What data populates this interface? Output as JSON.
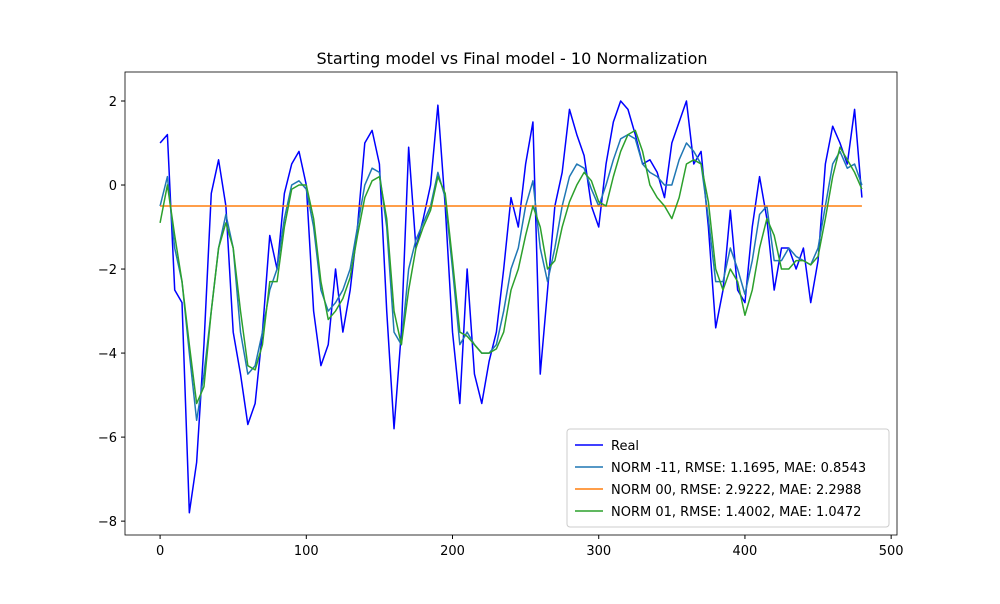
{
  "chart_data": {
    "type": "line",
    "title": "Starting model vs Final model - 10 Normalization",
    "x": [
      0,
      5,
      10,
      15,
      20,
      25,
      30,
      35,
      40,
      45,
      50,
      55,
      60,
      65,
      70,
      75,
      80,
      85,
      90,
      95,
      100,
      105,
      110,
      115,
      120,
      125,
      130,
      135,
      140,
      145,
      150,
      155,
      160,
      165,
      170,
      175,
      180,
      185,
      190,
      195,
      200,
      205,
      210,
      215,
      220,
      225,
      230,
      235,
      240,
      245,
      250,
      255,
      260,
      265,
      270,
      275,
      280,
      285,
      290,
      295,
      300,
      305,
      310,
      315,
      320,
      325,
      330,
      335,
      340,
      345,
      350,
      355,
      360,
      365,
      370,
      375,
      380,
      385,
      390,
      395,
      400,
      405,
      410,
      415,
      420,
      425,
      430,
      435,
      440,
      445,
      450,
      455,
      460,
      465,
      470,
      475,
      480
    ],
    "series": [
      {
        "name": "Real",
        "color": "#0000ff",
        "values": [
          1.0,
          1.2,
          -2.5,
          -2.8,
          -7.8,
          -6.6,
          -3.8,
          -0.2,
          0.6,
          -0.5,
          -3.5,
          -4.5,
          -5.7,
          -5.2,
          -3.5,
          -1.2,
          -2.0,
          -0.2,
          0.5,
          0.8,
          0.0,
          -3.0,
          -4.3,
          -3.8,
          -2.0,
          -3.5,
          -2.5,
          -1.0,
          1.0,
          1.3,
          0.5,
          -3.0,
          -5.8,
          -3.5,
          0.9,
          -1.5,
          -0.8,
          0.0,
          1.9,
          -0.5,
          -3.5,
          -5.2,
          -2.0,
          -4.5,
          -5.2,
          -4.2,
          -3.5,
          -2.0,
          -0.3,
          -1.0,
          0.5,
          1.5,
          -4.5,
          -2.5,
          -0.5,
          0.3,
          1.8,
          1.2,
          0.7,
          -0.5,
          -1.0,
          0.5,
          1.5,
          2.0,
          1.8,
          1.2,
          0.5,
          0.6,
          0.3,
          -0.3,
          1.0,
          1.5,
          2.0,
          0.5,
          0.8,
          -1.0,
          -3.4,
          -2.5,
          -0.6,
          -2.5,
          -2.8,
          -1.0,
          0.2,
          -0.8,
          -2.5,
          -1.5,
          -1.5,
          -2.0,
          -1.5,
          -2.8,
          -1.8,
          0.5,
          1.4,
          1.0,
          0.5,
          1.8,
          -0.3
        ]
      },
      {
        "name": "NORM -11, RMSE: 1.1695, MAE: 0.8543",
        "color": "#1f77b4",
        "values": [
          -0.5,
          0.2,
          -1.5,
          -2.3,
          -4.0,
          -5.6,
          -4.5,
          -3.0,
          -1.5,
          -0.7,
          -1.5,
          -3.5,
          -4.5,
          -4.3,
          -3.5,
          -2.5,
          -2.0,
          -0.8,
          0.0,
          0.1,
          -0.1,
          -1.0,
          -2.5,
          -3.0,
          -2.8,
          -2.5,
          -2.0,
          -1.0,
          0.0,
          0.4,
          0.3,
          -1.0,
          -3.5,
          -3.8,
          -2.0,
          -1.3,
          -0.9,
          -0.5,
          0.3,
          -0.3,
          -2.0,
          -3.8,
          -3.5,
          -3.8,
          -4.0,
          -4.0,
          -3.8,
          -3.0,
          -2.0,
          -1.5,
          -0.5,
          0.1,
          -1.5,
          -2.3,
          -1.5,
          -0.5,
          0.2,
          0.5,
          0.4,
          -0.1,
          -0.5,
          0.0,
          0.6,
          1.1,
          1.2,
          1.1,
          0.5,
          0.3,
          0.2,
          0.0,
          0.0,
          0.6,
          1.0,
          0.8,
          0.5,
          -0.8,
          -2.3,
          -2.3,
          -1.5,
          -2.0,
          -2.6,
          -1.8,
          -0.7,
          -0.5,
          -1.8,
          -1.8,
          -1.5,
          -1.7,
          -1.8,
          -1.9,
          -1.5,
          -0.5,
          0.5,
          0.8,
          0.4,
          0.5,
          0.0
        ]
      },
      {
        "name": "NORM 00, RMSE: 2.9222, MAE: 2.2988",
        "color": "#ff7f0e",
        "values": [
          -0.5,
          -0.5,
          -0.5,
          -0.5,
          -0.5,
          -0.5,
          -0.5,
          -0.5,
          -0.5,
          -0.5,
          -0.5,
          -0.5,
          -0.5,
          -0.5,
          -0.5,
          -0.5,
          -0.5,
          -0.5,
          -0.5,
          -0.5,
          -0.5,
          -0.5,
          -0.5,
          -0.5,
          -0.5,
          -0.5,
          -0.5,
          -0.5,
          -0.5,
          -0.5,
          -0.5,
          -0.5,
          -0.5,
          -0.5,
          -0.5,
          -0.5,
          -0.5,
          -0.5,
          -0.5,
          -0.5,
          -0.5,
          -0.5,
          -0.5,
          -0.5,
          -0.5,
          -0.5,
          -0.5,
          -0.5,
          -0.5,
          -0.5,
          -0.5,
          -0.5,
          -0.5,
          -0.5,
          -0.5,
          -0.5,
          -0.5,
          -0.5,
          -0.5,
          -0.5,
          -0.5,
          -0.5,
          -0.5,
          -0.5,
          -0.5,
          -0.5,
          -0.5,
          -0.5,
          -0.5,
          -0.5,
          -0.5,
          -0.5,
          -0.5,
          -0.5,
          -0.5,
          -0.5,
          -0.5,
          -0.5,
          -0.5,
          -0.5,
          -0.5,
          -0.5,
          -0.5,
          -0.5,
          -0.5,
          -0.5,
          -0.5,
          -0.5,
          -0.5,
          -0.5,
          -0.5,
          -0.5,
          -0.5,
          -0.5,
          -0.5,
          -0.5,
          -0.5
        ]
      },
      {
        "name": "NORM 01, RMSE: 1.4002, MAE: 1.0472",
        "color": "#2ca02c",
        "values": [
          -0.9,
          0.0,
          -1.2,
          -2.3,
          -3.8,
          -5.2,
          -4.8,
          -3.0,
          -1.5,
          -0.9,
          -1.5,
          -3.0,
          -4.3,
          -4.4,
          -3.8,
          -2.3,
          -2.3,
          -1.0,
          -0.1,
          0.0,
          0.0,
          -0.8,
          -2.3,
          -3.2,
          -3.0,
          -2.7,
          -2.2,
          -1.2,
          -0.3,
          0.1,
          0.2,
          -0.8,
          -3.0,
          -3.8,
          -2.5,
          -1.5,
          -1.0,
          -0.6,
          0.2,
          -0.2,
          -1.8,
          -3.5,
          -3.6,
          -3.8,
          -4.0,
          -4.0,
          -3.9,
          -3.5,
          -2.5,
          -2.0,
          -1.2,
          -0.5,
          -1.0,
          -2.0,
          -1.8,
          -1.0,
          -0.4,
          0.0,
          0.3,
          0.1,
          -0.4,
          -0.5,
          0.2,
          0.8,
          1.2,
          1.3,
          0.8,
          0.0,
          -0.3,
          -0.5,
          -0.8,
          -0.3,
          0.5,
          0.6,
          0.5,
          -0.4,
          -2.0,
          -2.5,
          -2.0,
          -2.3,
          -3.1,
          -2.5,
          -1.5,
          -0.8,
          -1.2,
          -2.0,
          -2.0,
          -1.8,
          -1.8,
          -1.9,
          -1.7,
          -0.8,
          0.2,
          0.9,
          0.6,
          0.3,
          -0.1
        ]
      }
    ],
    "xlim": [
      -24,
      504
    ],
    "xticks": [
      0,
      100,
      200,
      300,
      400,
      500
    ],
    "ylim": [
      -8.33,
      2.69
    ],
    "yticks": [
      {
        "value": -8,
        "label": "−8"
      },
      {
        "value": -6,
        "label": "−6"
      },
      {
        "value": -4,
        "label": "−4"
      },
      {
        "value": -2,
        "label": "−2"
      },
      0,
      2
    ],
    "legend": "lower right"
  }
}
